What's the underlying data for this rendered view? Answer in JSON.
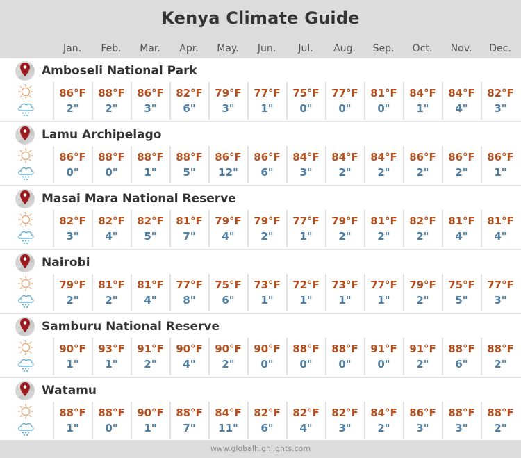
{
  "header": {
    "title": "Kenya Climate Guide",
    "months": [
      "Jan.",
      "Feb.",
      "Mar.",
      "Apr.",
      "May.",
      "Jun.",
      "Jul.",
      "Aug.",
      "Sep.",
      "Oct.",
      "Nov.",
      "Dec."
    ]
  },
  "colors": {
    "header_bg": "#dcdcdc",
    "temperature": "#b5501f",
    "rainfall": "#4e7fa3",
    "pin": "#9b1b1f"
  },
  "icons": {
    "location": "map-pin-icon",
    "temperature": "sun-icon",
    "rainfall": "rain-cloud-icon"
  },
  "places": [
    {
      "name": "Amboseli National Park",
      "temps": [
        "86°F",
        "88°F",
        "86°F",
        "82°F",
        "79°F",
        "77°F",
        "75°F",
        "77°F",
        "81°F",
        "84°F",
        "84°F",
        "82°F"
      ],
      "rain": [
        "2\"",
        "2\"",
        "3\"",
        "6\"",
        "3\"",
        "1\"",
        "0\"",
        "0\"",
        "0\"",
        "1\"",
        "4\"",
        "3\""
      ]
    },
    {
      "name": "Lamu Archipelago",
      "temps": [
        "86°F",
        "88°F",
        "88°F",
        "88°F",
        "86°F",
        "86°F",
        "84°F",
        "84°F",
        "84°F",
        "86°F",
        "86°F",
        "86°F"
      ],
      "rain": [
        "0\"",
        "0\"",
        "1\"",
        "5\"",
        "12\"",
        "6\"",
        "3\"",
        "2\"",
        "2\"",
        "2\"",
        "2\"",
        "1\""
      ]
    },
    {
      "name": "Masai Mara National Reserve",
      "temps": [
        "82°F",
        "82°F",
        "82°F",
        "81°F",
        "79°F",
        "79°F",
        "77°F",
        "79°F",
        "81°F",
        "82°F",
        "81°F",
        "81°F"
      ],
      "rain": [
        "3\"",
        "4\"",
        "5\"",
        "7\"",
        "4\"",
        "2\"",
        "1\"",
        "2\"",
        "2\"",
        "2\"",
        "4\"",
        "4\""
      ]
    },
    {
      "name": "Nairobi",
      "temps": [
        "79°F",
        "81°F",
        "81°F",
        "77°F",
        "75°F",
        "73°F",
        "72°F",
        "73°F",
        "77°F",
        "79°F",
        "75°F",
        "77°F"
      ],
      "rain": [
        "2\"",
        "2\"",
        "4\"",
        "8\"",
        "6\"",
        "1\"",
        "1\"",
        "1\"",
        "1\"",
        "2\"",
        "5\"",
        "3\""
      ]
    },
    {
      "name": "Samburu National Reserve",
      "temps": [
        "90°F",
        "93°F",
        "91°F",
        "90°F",
        "90°F",
        "90°F",
        "88°F",
        "88°F",
        "91°F",
        "91°F",
        "88°F",
        "88°F"
      ],
      "rain": [
        "1\"",
        "1\"",
        "2\"",
        "4\"",
        "2\"",
        "0\"",
        "0\"",
        "0\"",
        "0\"",
        "2\"",
        "6\"",
        "2\""
      ]
    },
    {
      "name": "Watamu",
      "temps": [
        "88°F",
        "88°F",
        "90°F",
        "88°F",
        "84°F",
        "82°F",
        "82°F",
        "82°F",
        "84°F",
        "86°F",
        "88°F",
        "88°F"
      ],
      "rain": [
        "1\"",
        "0\"",
        "1\"",
        "7\"",
        "11\"",
        "6\"",
        "4\"",
        "3\"",
        "2\"",
        "3\"",
        "3\"",
        "2\""
      ]
    }
  ],
  "footer": {
    "source": "www.globalhighlights.com"
  }
}
